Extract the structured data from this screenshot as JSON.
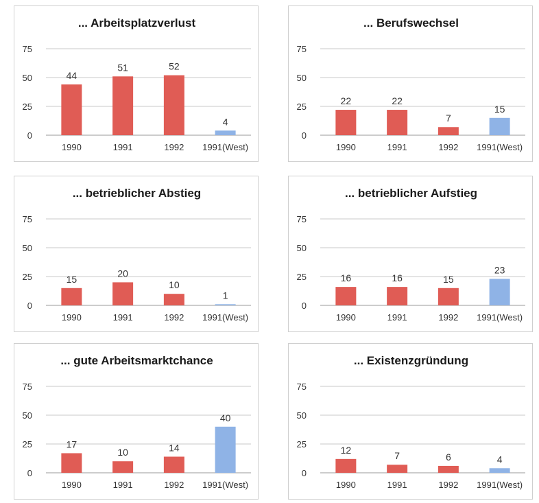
{
  "colors": {
    "red": "#e05c55",
    "blue": "#8fb3e6",
    "grid": "#c8c8c8",
    "axis": "#9a9a9a"
  },
  "chart_data": [
    {
      "type": "bar",
      "title": "... Arbeitsplatzverlust",
      "categories": [
        "1990",
        "1991",
        "1992",
        "1991(West)"
      ],
      "values": [
        44,
        51,
        52,
        4
      ],
      "data_labels": [
        "44",
        "51",
        "52",
        "4"
      ],
      "bar_colors": [
        "red",
        "red",
        "red",
        "blue"
      ],
      "ylim": [
        0,
        75
      ],
      "yticks": [
        0,
        25,
        50,
        75
      ],
      "ytick_labels": [
        "0",
        "25",
        "50",
        "75"
      ],
      "grid": true
    },
    {
      "type": "bar",
      "title": "... Berufswechsel",
      "categories": [
        "1990",
        "1991",
        "1992",
        "1991(West)"
      ],
      "values": [
        22,
        22,
        7,
        15
      ],
      "data_labels": [
        "22",
        "22",
        "7",
        "15"
      ],
      "bar_colors": [
        "red",
        "red",
        "red",
        "blue"
      ],
      "ylim": [
        0,
        75
      ],
      "yticks": [
        0,
        25,
        50,
        75
      ],
      "ytick_labels": [
        "0",
        "25",
        "50",
        "75"
      ],
      "grid": true
    },
    {
      "type": "bar",
      "title": "... betrieblicher Abstieg",
      "categories": [
        "1990",
        "1991",
        "1992",
        "1991(West)"
      ],
      "values": [
        15,
        20,
        10,
        1
      ],
      "data_labels": [
        "15",
        "20",
        "10",
        "1"
      ],
      "bar_colors": [
        "red",
        "red",
        "red",
        "blue"
      ],
      "ylim": [
        0,
        75
      ],
      "yticks": [
        0,
        25,
        50,
        75
      ],
      "ytick_labels": [
        "0",
        "25",
        "50",
        "75"
      ],
      "grid": true
    },
    {
      "type": "bar",
      "title": "... betrieblicher Aufstieg",
      "categories": [
        "1990",
        "1991",
        "1992",
        "1991(West)"
      ],
      "values": [
        16,
        16,
        15,
        23
      ],
      "data_labels": [
        "16",
        "16",
        "15",
        "23"
      ],
      "bar_colors": [
        "red",
        "red",
        "red",
        "blue"
      ],
      "ylim": [
        0,
        75
      ],
      "yticks": [
        0,
        25,
        50,
        75
      ],
      "ytick_labels": [
        "0",
        "25",
        "50",
        "75"
      ],
      "grid": true
    },
    {
      "type": "bar",
      "title": "... gute Arbeitsmarktchance",
      "categories": [
        "1990",
        "1991",
        "1992",
        "1991(West)"
      ],
      "values": [
        17,
        10,
        14,
        40
      ],
      "data_labels": [
        "17",
        "10",
        "14",
        "40"
      ],
      "bar_colors": [
        "red",
        "red",
        "red",
        "blue"
      ],
      "ylim": [
        0,
        75
      ],
      "yticks": [
        0,
        25,
        50,
        75
      ],
      "ytick_labels": [
        "0",
        "25",
        "50",
        "75"
      ],
      "grid": true
    },
    {
      "type": "bar",
      "title": "... Existenzgründung",
      "categories": [
        "1990",
        "1991",
        "1992",
        "1991(West)"
      ],
      "values": [
        12,
        7,
        6,
        4
      ],
      "data_labels": [
        "12",
        "7",
        "6",
        "4"
      ],
      "bar_colors": [
        "red",
        "red",
        "red",
        "blue"
      ],
      "ylim": [
        0,
        75
      ],
      "yticks": [
        0,
        25,
        50,
        75
      ],
      "ytick_labels": [
        "0",
        "25",
        "50",
        "75"
      ],
      "grid": true
    }
  ]
}
